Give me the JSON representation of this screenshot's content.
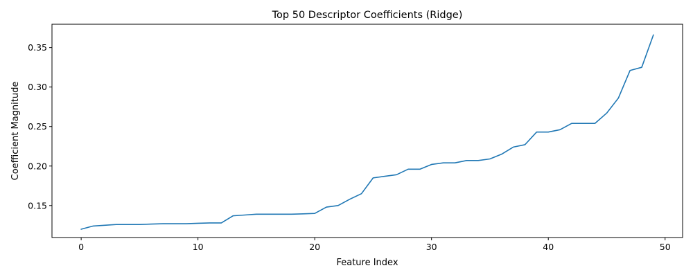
{
  "chart_data": {
    "type": "line",
    "title": "Top 50 Descriptor Coefficients (Ridge)",
    "xlabel": "Feature Index",
    "ylabel": "Coefficient Magnitude",
    "xlim": [
      -2.5,
      51.5
    ],
    "ylim": [
      0.1095,
      0.3795
    ],
    "x_ticks": [
      0,
      10,
      20,
      30,
      40,
      50
    ],
    "y_ticks": [
      0.15,
      0.2,
      0.25,
      0.3,
      0.35
    ],
    "x_tick_labels": [
      "0",
      "10",
      "20",
      "30",
      "40",
      "50"
    ],
    "y_tick_labels": [
      "0.15",
      "0.20",
      "0.25",
      "0.30",
      "0.35"
    ],
    "grid": false,
    "series": [
      {
        "color": "#1f77b4",
        "x": [
          0,
          1,
          2,
          3,
          4,
          5,
          6,
          7,
          8,
          9,
          10,
          11,
          12,
          13,
          14,
          15,
          16,
          17,
          18,
          19,
          20,
          21,
          22,
          23,
          24,
          25,
          26,
          27,
          28,
          29,
          30,
          31,
          32,
          33,
          34,
          35,
          36,
          37,
          38,
          39,
          40,
          41,
          42,
          43,
          44,
          45,
          46,
          47,
          48,
          49
        ],
        "values": [
          0.12,
          0.124,
          0.125,
          0.126,
          0.126,
          0.126,
          0.1265,
          0.127,
          0.127,
          0.127,
          0.1275,
          0.128,
          0.128,
          0.137,
          0.138,
          0.139,
          0.139,
          0.139,
          0.139,
          0.1395,
          0.14,
          0.148,
          0.15,
          0.158,
          0.165,
          0.185,
          0.187,
          0.189,
          0.196,
          0.196,
          0.202,
          0.204,
          0.204,
          0.207,
          0.207,
          0.209,
          0.215,
          0.224,
          0.227,
          0.243,
          0.243,
          0.246,
          0.254,
          0.254,
          0.254,
          0.267,
          0.286,
          0.321,
          0.325,
          0.366
        ]
      }
    ]
  }
}
